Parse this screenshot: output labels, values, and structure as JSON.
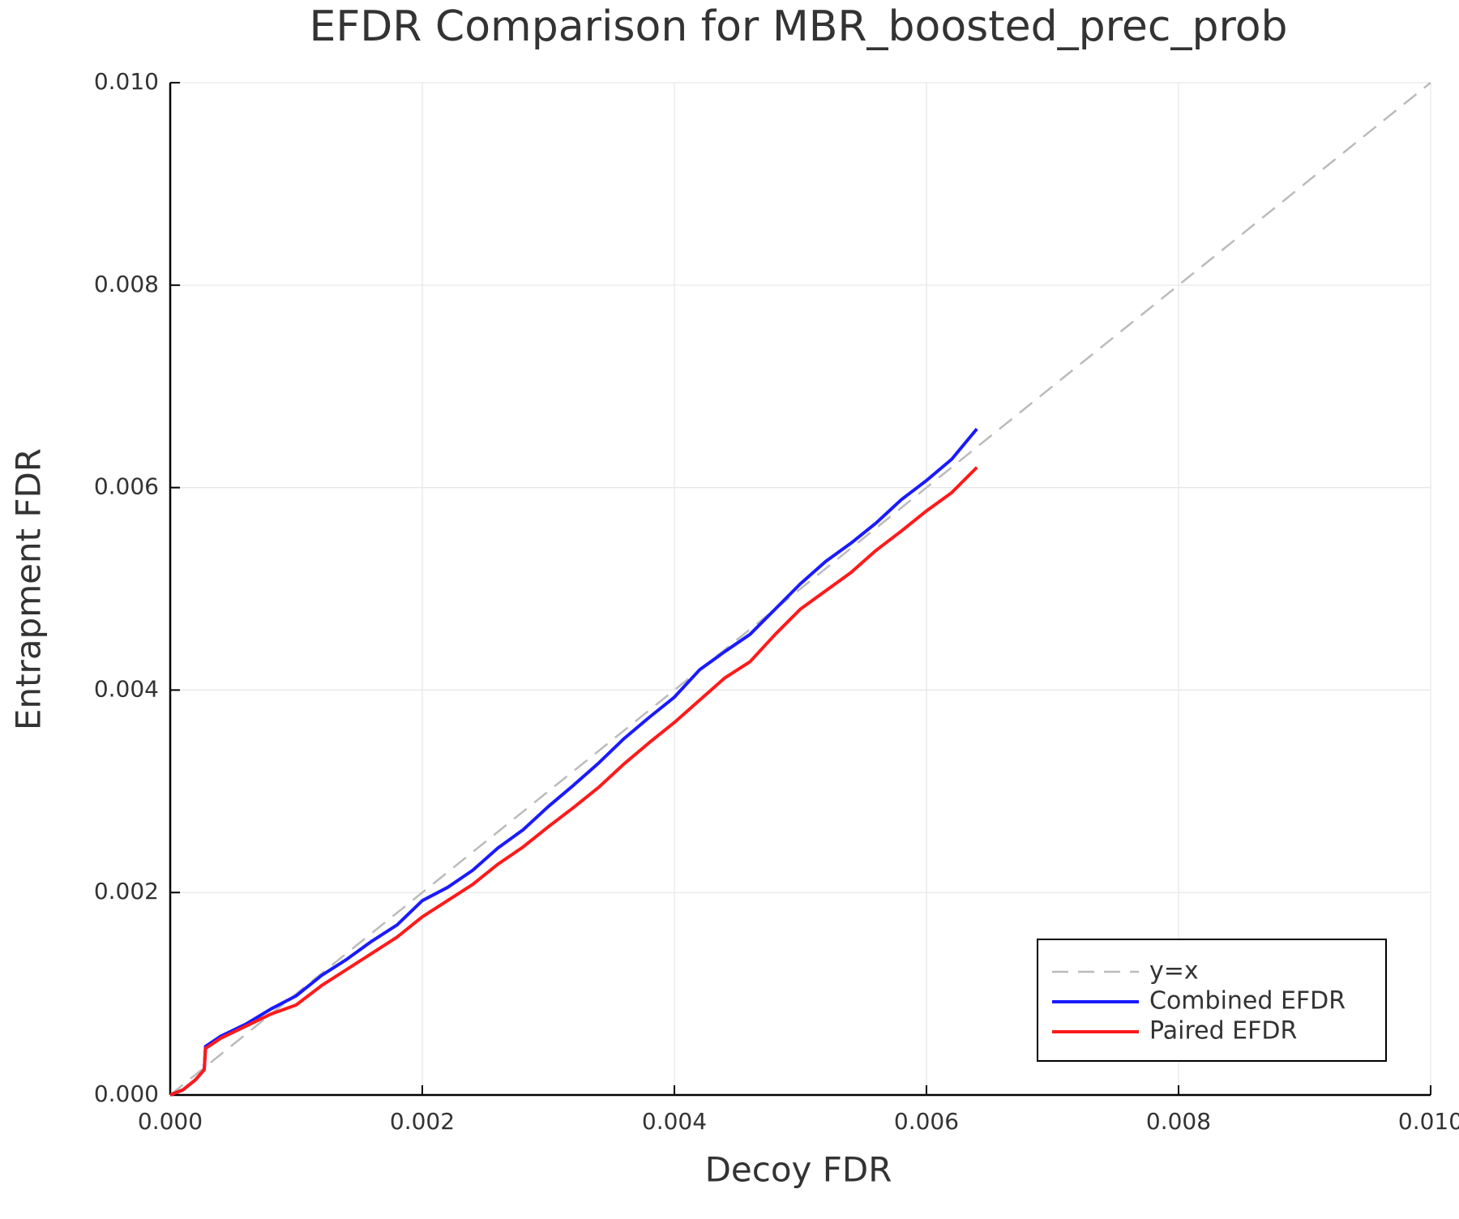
{
  "chart_data": {
    "type": "line",
    "title": "EFDR Comparison for MBR_boosted_prec_prob",
    "x_label": "Decoy FDR",
    "y_label": "Entrapment FDR",
    "xlim": [
      0,
      0.01
    ],
    "ylim": [
      0,
      0.01
    ],
    "xticks": [
      {
        "value": 0,
        "label": "0.000"
      },
      0.002,
      0.004,
      0.006,
      0.008,
      {
        "value": 0.01,
        "label": "0.010"
      }
    ],
    "yticks": [
      {
        "value": 0,
        "label": "0.000"
      },
      0.002,
      0.004,
      0.006,
      0.008,
      {
        "value": 0.01,
        "label": "0.010"
      }
    ],
    "grid": true,
    "legend": "lower right",
    "series": [
      {
        "name": "y=x",
        "color": "#bbbbbb",
        "dashed": true,
        "x": [
          0,
          0.01
        ],
        "values": [
          0,
          0.01
        ]
      },
      {
        "name": "Combined EFDR",
        "color": "#1a1aff",
        "x": [
          0,
          0.0001,
          0.0002,
          0.00027,
          0.00028,
          0.0004,
          0.0006,
          0.0008,
          0.001,
          0.0012,
          0.0014,
          0.0016,
          0.0018,
          0.002,
          0.0022,
          0.0024,
          0.0026,
          0.0028,
          0.003,
          0.0032,
          0.0034,
          0.0036,
          0.0038,
          0.004,
          0.0042,
          0.0044,
          0.0046,
          0.0048,
          0.005,
          0.0052,
          0.0054,
          0.0056,
          0.0058,
          0.006,
          0.0062,
          0.0064
        ],
        "values": [
          0,
          5e-05,
          0.00015,
          0.00025,
          0.00048,
          0.00058,
          0.0007,
          0.00085,
          0.00098,
          0.00118,
          0.00134,
          0.00152,
          0.00168,
          0.00192,
          0.00205,
          0.00222,
          0.00244,
          0.00262,
          0.00285,
          0.00306,
          0.00328,
          0.00352,
          0.00373,
          0.00393,
          0.0042,
          0.00438,
          0.00455,
          0.0048,
          0.00505,
          0.00527,
          0.00545,
          0.00565,
          0.00588,
          0.00607,
          0.00628,
          0.00658
        ]
      },
      {
        "name": "Paired EFDR",
        "color": "#ff1a1a",
        "x": [
          0,
          0.0001,
          0.0002,
          0.00027,
          0.00028,
          0.0004,
          0.0006,
          0.0008,
          0.001,
          0.0012,
          0.0014,
          0.0016,
          0.0018,
          0.002,
          0.0022,
          0.0024,
          0.0026,
          0.0028,
          0.003,
          0.0032,
          0.0034,
          0.0036,
          0.0038,
          0.004,
          0.0042,
          0.0044,
          0.0046,
          0.0048,
          0.005,
          0.0052,
          0.0054,
          0.0056,
          0.0058,
          0.006,
          0.0062,
          0.0064
        ],
        "values": [
          0,
          5e-05,
          0.00015,
          0.00025,
          0.00046,
          0.00056,
          0.00068,
          0.0008,
          0.00089,
          0.00108,
          0.00124,
          0.0014,
          0.00156,
          0.00176,
          0.00192,
          0.00208,
          0.00228,
          0.00245,
          0.00265,
          0.00284,
          0.00304,
          0.00327,
          0.00348,
          0.00368,
          0.0039,
          0.00412,
          0.00428,
          0.00455,
          0.0048,
          0.00498,
          0.00516,
          0.00538,
          0.00557,
          0.00577,
          0.00595,
          0.0062
        ]
      }
    ]
  }
}
